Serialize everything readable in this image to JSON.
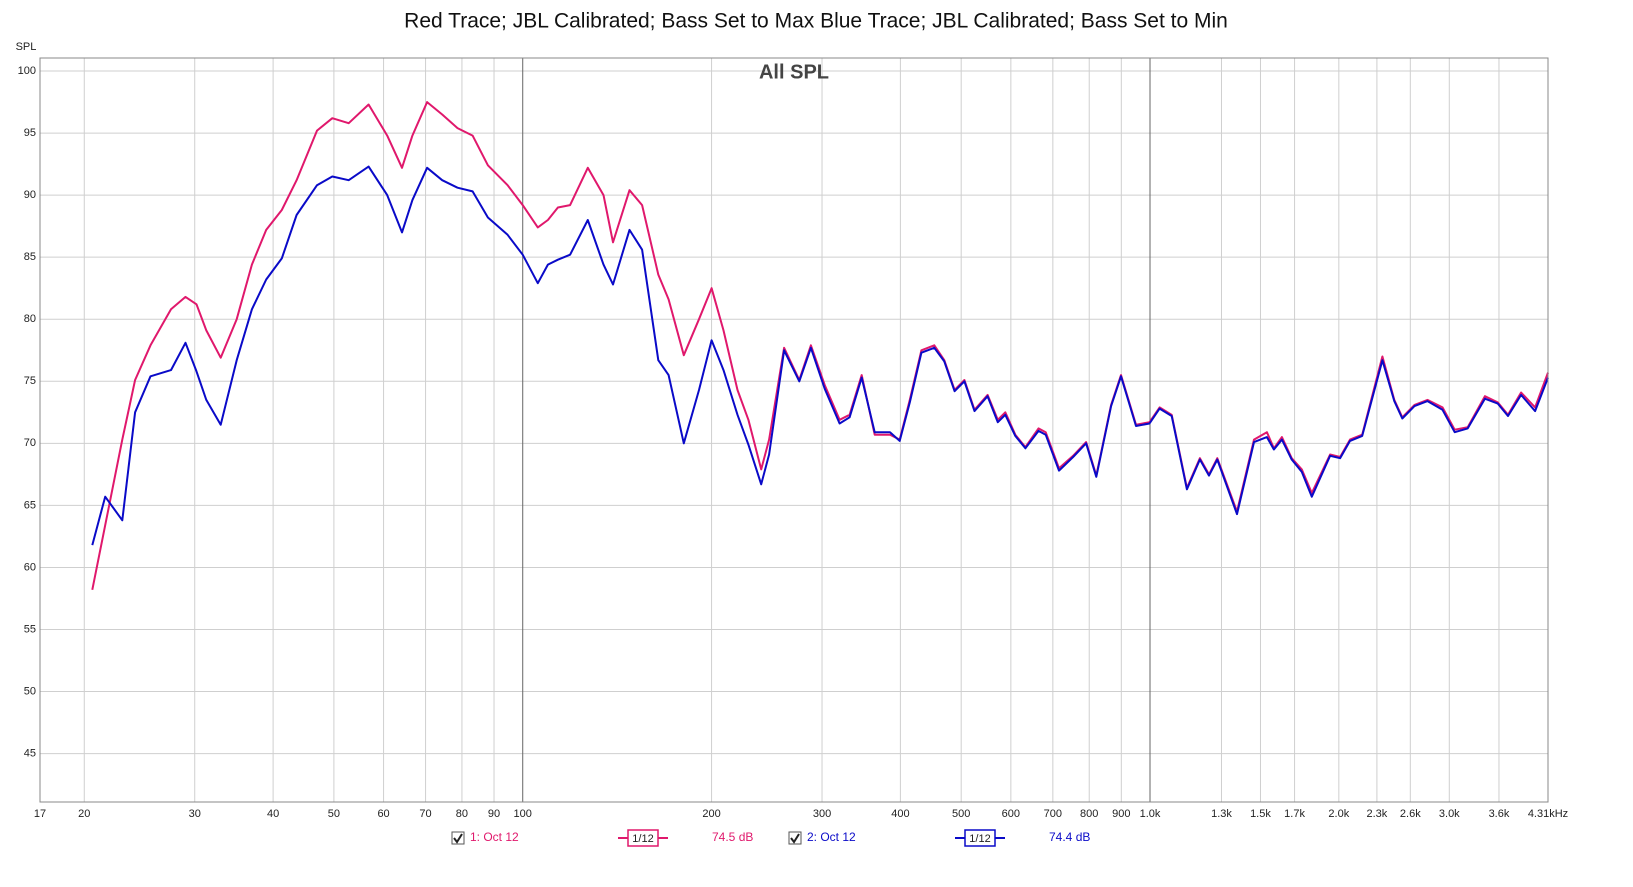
{
  "chart_data": {
    "type": "line",
    "title": "Red Trace; JBL Calibrated; Bass Set to Max Blue Trace; JBL Calibrated; Bass Set to Min",
    "plot_label": "All SPL",
    "y_label": "SPL",
    "log_x": true,
    "grid": true,
    "xlim": [
      17,
      4310
    ],
    "ylim": [
      41.1,
      101.05
    ],
    "xticks": [
      17,
      20,
      30,
      40,
      50,
      60,
      70,
      80,
      90,
      100,
      200,
      300,
      400,
      500,
      600,
      700,
      800,
      900,
      {
        "value": 1000,
        "label": "1.0k"
      },
      {
        "value": 1300,
        "label": "1.3k"
      },
      {
        "value": 1500,
        "label": "1.5k"
      },
      {
        "value": 1700,
        "label": "1.7k"
      },
      {
        "value": 2000,
        "label": "2.0k"
      },
      {
        "value": 2300,
        "label": "2.3k"
      },
      {
        "value": 2600,
        "label": "2.6k"
      },
      {
        "value": 3000,
        "label": "3.0k"
      },
      {
        "value": 3600,
        "label": "3.6k"
      },
      {
        "value": 4310,
        "label": "4.31kHz"
      }
    ],
    "yticks": [
      45,
      50,
      55,
      60,
      65,
      70,
      75,
      80,
      85,
      90,
      95,
      100
    ],
    "x": [
      20.6,
      21.6,
      23.0,
      24.1,
      25.5,
      27.5,
      29,
      30.2,
      31.3,
      33.0,
      35.0,
      37.0,
      39.0,
      41.3,
      43.6,
      47.0,
      49.7,
      52.8,
      56.8,
      60.8,
      64.2,
      66.7,
      70.4,
      74.4,
      78.7,
      83.2,
      88.0,
      94.6,
      100,
      105.7,
      109.7,
      113.8,
      119,
      127,
      134.5,
      139.3,
      148,
      155,
      164.5,
      170.8,
      180.6,
      191,
      200,
      209,
      220,
      229,
      240,
      247,
      261,
      276,
      288,
      303,
      320,
      332,
      347,
      364,
      385,
      399,
      414,
      432,
      453,
      470,
      488,
      506,
      525,
      551,
      572,
      588,
      610,
      633,
      664,
      682,
      716,
      754,
      791,
      821,
      867,
      899,
      950,
      998,
      1036,
      1083,
      1145,
      1201,
      1242,
      1280,
      1376,
      1465,
      1536,
      1576,
      1623,
      1682,
      1746,
      1811,
      1937,
      2009,
      2084,
      2179,
      2347,
      2452,
      2525,
      2640,
      2769,
      2926,
      3060,
      3210,
      3419,
      3585,
      3722,
      3905,
      4111,
      4310
    ],
    "series": [
      {
        "name": "1: Oct 12",
        "color": "#e0186c",
        "smoothing": "1/12",
        "level": "74.5 dB",
        "values": [
          58.2,
          63.4,
          70.3,
          75.1,
          77.9,
          80.8,
          81.8,
          81.2,
          79.1,
          76.9,
          80.0,
          84.4,
          87.2,
          88.8,
          91.2,
          95.2,
          96.2,
          95.8,
          97.3,
          94.8,
          92.2,
          94.8,
          97.5,
          96.5,
          95.4,
          94.8,
          92.4,
          90.8,
          89.2,
          87.4,
          88.0,
          89.0,
          89.2,
          92.2,
          90.0,
          86.2,
          90.4,
          89.2,
          83.6,
          81.6,
          77.1,
          80.0,
          82.5,
          79.1,
          74.3,
          71.9,
          67.9,
          70.3,
          77.7,
          75.1,
          77.9,
          74.7,
          71.9,
          72.3,
          75.5,
          70.7,
          70.7,
          70.3,
          73.5,
          77.5,
          77.9,
          76.7,
          74.3,
          75.1,
          72.7,
          73.9,
          71.9,
          72.5,
          70.7,
          69.7,
          71.2,
          70.9,
          68.0,
          69.0,
          70.1,
          67.4,
          73.1,
          75.5,
          71.5,
          71.7,
          72.9,
          72.3,
          66.4,
          68.8,
          67.5,
          68.8,
          64.5,
          70.3,
          70.9,
          69.6,
          70.5,
          68.8,
          67.9,
          66.0,
          69.1,
          68.9,
          70.3,
          70.7,
          77.0,
          73.5,
          72.1,
          73.1,
          73.5,
          72.9,
          71.1,
          71.3,
          73.8,
          73.3,
          72.3,
          74.1,
          72.9,
          75.7
        ]
      },
      {
        "name": "2: Oct 12",
        "color": "#0a0ac8",
        "smoothing": "1/12",
        "level": "74.4 dB",
        "values": [
          61.8,
          65.7,
          63.8,
          72.5,
          75.4,
          75.9,
          78.1,
          75.8,
          73.5,
          71.5,
          76.7,
          80.8,
          83.2,
          84.9,
          88.4,
          90.8,
          91.5,
          91.2,
          92.3,
          90.0,
          87.0,
          89.6,
          92.2,
          91.2,
          90.6,
          90.3,
          88.2,
          86.8,
          85.2,
          82.9,
          84.4,
          84.8,
          85.2,
          88.0,
          84.4,
          82.8,
          87.2,
          85.6,
          76.7,
          75.5,
          70.0,
          74.3,
          78.3,
          75.9,
          72.3,
          69.9,
          66.7,
          69.1,
          77.5,
          75.0,
          77.7,
          74.4,
          71.6,
          72.1,
          75.3,
          70.9,
          70.9,
          70.2,
          73.3,
          77.3,
          77.7,
          76.6,
          74.2,
          75.0,
          72.6,
          73.8,
          71.7,
          72.3,
          70.6,
          69.6,
          71.0,
          70.7,
          67.8,
          68.9,
          70.0,
          67.3,
          73.0,
          75.4,
          71.4,
          71.6,
          72.8,
          72.2,
          66.3,
          68.7,
          67.4,
          68.7,
          64.3,
          70.1,
          70.5,
          69.5,
          70.3,
          68.7,
          67.7,
          65.7,
          69.0,
          68.8,
          70.2,
          70.6,
          76.7,
          73.4,
          72.0,
          73.0,
          73.4,
          72.7,
          70.9,
          71.2,
          73.6,
          73.2,
          72.2,
          73.9,
          72.6,
          75.3
        ]
      }
    ]
  }
}
